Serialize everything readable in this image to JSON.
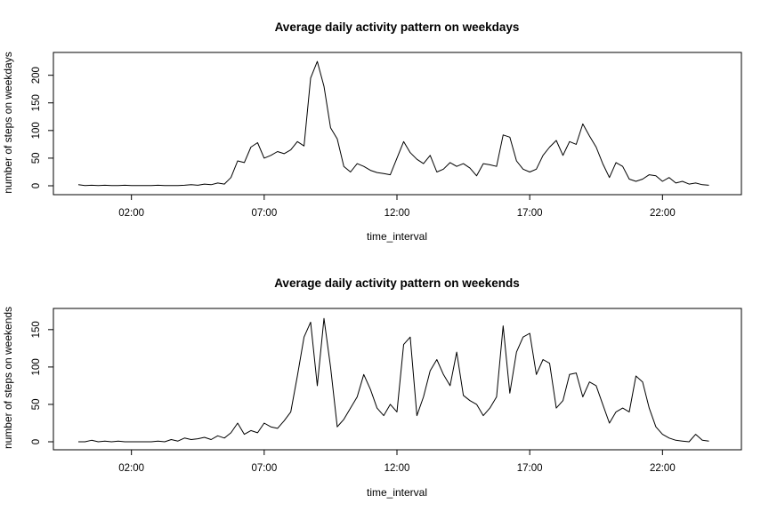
{
  "chart_data": [
    {
      "type": "line",
      "title": "Average daily activity pattern on weekdays",
      "xlabel": "time_interval",
      "ylabel": "number of steps on weekdays",
      "xlim": [
        0,
        24
      ],
      "ylim": [
        0,
        230
      ],
      "x_ticks": [
        2,
        7,
        12,
        17,
        22
      ],
      "x_tick_labels": [
        "02:00",
        "07:00",
        "12:00",
        "17:00",
        "22:00"
      ],
      "y_ticks": [
        0,
        50,
        100,
        150,
        200
      ],
      "y_tick_labels": [
        "0",
        "50",
        "100",
        "150",
        "200"
      ],
      "series": [
        {
          "name": "weekdays",
          "x": [
            0.0,
            0.25,
            0.5,
            0.75,
            1.0,
            1.25,
            1.5,
            1.75,
            2.0,
            2.25,
            2.5,
            2.75,
            3.0,
            3.25,
            3.5,
            3.75,
            4.0,
            4.25,
            4.5,
            4.75,
            5.0,
            5.25,
            5.5,
            5.75,
            6.0,
            6.25,
            6.5,
            6.75,
            7.0,
            7.25,
            7.5,
            7.75,
            8.0,
            8.25,
            8.5,
            8.75,
            9.0,
            9.25,
            9.5,
            9.75,
            10.0,
            10.25,
            10.5,
            10.75,
            11.0,
            11.25,
            11.5,
            11.75,
            12.0,
            12.25,
            12.5,
            12.75,
            13.0,
            13.25,
            13.5,
            13.75,
            14.0,
            14.25,
            14.5,
            14.75,
            15.0,
            15.25,
            15.5,
            15.75,
            16.0,
            16.25,
            16.5,
            16.75,
            17.0,
            17.25,
            17.5,
            17.75,
            18.0,
            18.25,
            18.5,
            18.75,
            19.0,
            19.25,
            19.5,
            19.75,
            20.0,
            20.25,
            20.5,
            20.75,
            21.0,
            21.25,
            21.5,
            21.75,
            22.0,
            22.25,
            22.5,
            22.75,
            23.0,
            23.25,
            23.5,
            23.75
          ],
          "values": [
            2,
            0.5,
            1,
            0.5,
            1,
            0.3,
            0.5,
            1,
            0.3,
            0.5,
            0.3,
            0.5,
            1,
            0.5,
            0.3,
            0.5,
            1,
            2,
            1,
            3,
            2,
            5,
            3,
            15,
            45,
            42,
            70,
            78,
            50,
            55,
            62,
            58,
            65,
            80,
            72,
            195,
            225,
            180,
            105,
            85,
            35,
            25,
            40,
            35,
            28,
            24,
            22,
            20,
            50,
            80,
            60,
            48,
            40,
            55,
            25,
            30,
            42,
            35,
            40,
            32,
            18,
            40,
            38,
            35,
            92,
            88,
            45,
            30,
            25,
            30,
            55,
            70,
            82,
            55,
            80,
            75,
            112,
            90,
            70,
            40,
            15,
            42,
            35,
            12,
            8,
            12,
            20,
            18,
            8,
            15,
            5,
            8,
            3,
            5,
            2,
            1
          ]
        }
      ]
    },
    {
      "type": "line",
      "title": "Average daily activity pattern on weekends",
      "xlabel": "time_interval",
      "ylabel": "number of steps on weekends",
      "xlim": [
        0,
        24
      ],
      "ylim": [
        0,
        170
      ],
      "x_ticks": [
        2,
        7,
        12,
        17,
        22
      ],
      "x_tick_labels": [
        "02:00",
        "07:00",
        "12:00",
        "17:00",
        "22:00"
      ],
      "y_ticks": [
        0,
        50,
        100,
        150
      ],
      "y_tick_labels": [
        "0",
        "50",
        "100",
        "150"
      ],
      "series": [
        {
          "name": "weekends",
          "x": [
            0.0,
            0.25,
            0.5,
            0.75,
            1.0,
            1.25,
            1.5,
            1.75,
            2.0,
            2.25,
            2.5,
            2.75,
            3.0,
            3.25,
            3.5,
            3.75,
            4.0,
            4.25,
            4.5,
            4.75,
            5.0,
            5.25,
            5.5,
            5.75,
            6.0,
            6.25,
            6.5,
            6.75,
            7.0,
            7.25,
            7.5,
            7.75,
            8.0,
            8.25,
            8.5,
            8.75,
            9.0,
            9.25,
            9.5,
            9.75,
            10.0,
            10.25,
            10.5,
            10.75,
            11.0,
            11.25,
            11.5,
            11.75,
            12.0,
            12.25,
            12.5,
            12.75,
            13.0,
            13.25,
            13.5,
            13.75,
            14.0,
            14.25,
            14.5,
            14.75,
            15.0,
            15.25,
            15.5,
            15.75,
            16.0,
            16.25,
            16.5,
            16.75,
            17.0,
            17.25,
            17.5,
            17.75,
            18.0,
            18.25,
            18.5,
            18.75,
            19.0,
            19.25,
            19.5,
            19.75,
            20.0,
            20.25,
            20.5,
            20.75,
            21.0,
            21.25,
            21.5,
            21.75,
            22.0,
            22.25,
            22.5,
            22.75,
            23.0,
            23.25,
            23.5,
            23.75
          ],
          "values": [
            0,
            0,
            2,
            0,
            1,
            0,
            1,
            0,
            0,
            0,
            0,
            0,
            1,
            0,
            3,
            1,
            5,
            3,
            4,
            6,
            3,
            8,
            5,
            12,
            25,
            10,
            15,
            12,
            25,
            20,
            18,
            28,
            40,
            88,
            140,
            160,
            75,
            165,
            100,
            20,
            30,
            45,
            60,
            90,
            70,
            45,
            35,
            50,
            40,
            130,
            140,
            35,
            60,
            95,
            110,
            90,
            75,
            120,
            62,
            55,
            50,
            35,
            45,
            60,
            155,
            65,
            120,
            140,
            145,
            90,
            110,
            105,
            45,
            55,
            90,
            92,
            60,
            80,
            75,
            50,
            25,
            40,
            45,
            40,
            88,
            80,
            45,
            20,
            10,
            5,
            2,
            1,
            0,
            10,
            2,
            1
          ]
        }
      ]
    }
  ]
}
